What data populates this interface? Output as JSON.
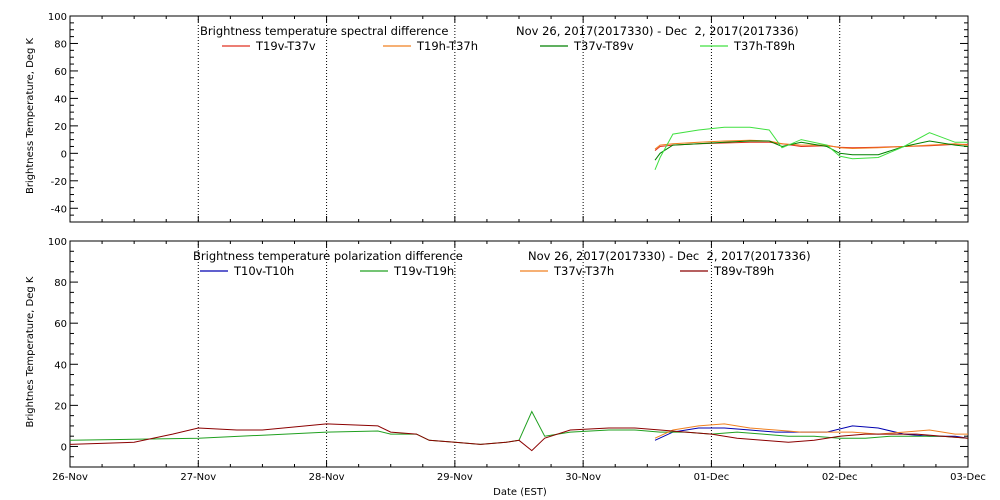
{
  "chart_data": [
    {
      "type": "line",
      "title": "Brightness temperature spectral difference",
      "date_range": "Nov 26, 2017(2017330) - Dec  2, 2017(2017336)",
      "xlabel": "",
      "ylabel": "Brightness Temperature, Deg K",
      "ylim": [
        -50,
        100
      ],
      "yticks": [
        "-40",
        "-20",
        "0",
        "20",
        "40",
        "60",
        "80",
        "100"
      ],
      "xlim": [
        "26-Nov",
        "03-Dec"
      ],
      "grid": "vertical dotted",
      "legend_placement": "top",
      "series": [
        {
          "name": "T19v-T37v",
          "color": "#e03020",
          "points": [
            [
              4.56,
              2
            ],
            [
              4.6,
              5
            ],
            [
              4.7,
              6
            ],
            [
              4.9,
              7
            ],
            [
              5.1,
              7.5
            ],
            [
              5.3,
              8
            ],
            [
              5.45,
              8
            ],
            [
              5.55,
              7
            ],
            [
              5.7,
              5
            ],
            [
              5.9,
              5.5
            ],
            [
              6.0,
              4.5
            ],
            [
              6.1,
              4
            ],
            [
              6.3,
              4.5
            ],
            [
              6.5,
              5
            ],
            [
              6.7,
              5.5
            ],
            [
              6.9,
              6.5
            ],
            [
              7.0,
              6.5
            ]
          ]
        },
        {
          "name": "T19h-T37h",
          "color": "#f08020",
          "points": [
            [
              4.56,
              3
            ],
            [
              4.6,
              6
            ],
            [
              4.7,
              7
            ],
            [
              4.9,
              8
            ],
            [
              5.1,
              9
            ],
            [
              5.3,
              9.5
            ],
            [
              5.45,
              9
            ],
            [
              5.55,
              7
            ],
            [
              5.7,
              6
            ],
            [
              5.9,
              6
            ],
            [
              6.0,
              4
            ],
            [
              6.1,
              3.5
            ],
            [
              6.3,
              4
            ],
            [
              6.5,
              5
            ],
            [
              6.7,
              6
            ],
            [
              6.9,
              7
            ],
            [
              7.0,
              6
            ]
          ]
        },
        {
          "name": "T37v-T89v",
          "color": "#008000",
          "points": [
            [
              4.56,
              -5
            ],
            [
              4.6,
              0
            ],
            [
              4.7,
              6
            ],
            [
              4.9,
              7
            ],
            [
              5.1,
              8
            ],
            [
              5.3,
              9
            ],
            [
              5.45,
              9
            ],
            [
              5.55,
              5
            ],
            [
              5.7,
              8
            ],
            [
              5.9,
              5
            ],
            [
              6.0,
              0
            ],
            [
              6.1,
              -1
            ],
            [
              6.3,
              -1
            ],
            [
              6.5,
              5
            ],
            [
              6.7,
              9
            ],
            [
              6.9,
              6
            ],
            [
              7.0,
              5
            ]
          ]
        },
        {
          "name": "T37h-T89h",
          "color": "#40e040",
          "points": [
            [
              4.56,
              -12
            ],
            [
              4.6,
              -3
            ],
            [
              4.7,
              14
            ],
            [
              4.9,
              17
            ],
            [
              5.1,
              19
            ],
            [
              5.3,
              19
            ],
            [
              5.45,
              17
            ],
            [
              5.55,
              4
            ],
            [
              5.7,
              10
            ],
            [
              5.9,
              6
            ],
            [
              6.0,
              -2
            ],
            [
              6.1,
              -4
            ],
            [
              6.3,
              -3
            ],
            [
              6.5,
              5
            ],
            [
              6.7,
              15
            ],
            [
              6.9,
              8
            ],
            [
              7.0,
              8
            ]
          ]
        }
      ]
    },
    {
      "type": "line",
      "title": "Brightness temperature polarization difference",
      "date_range": "Nov 26, 2017(2017330) - Dec  2, 2017(2017336)",
      "xlabel": "Date (EST)",
      "ylabel": "Brightnes Temperature, Deg K",
      "ylim": [
        -10,
        100
      ],
      "yticks": [
        "0",
        "20",
        "40",
        "60",
        "80",
        "100"
      ],
      "xlim": [
        "26-Nov",
        "03-Dec"
      ],
      "xticks": [
        "26-Nov",
        "27-Nov",
        "28-Nov",
        "29-Nov",
        "30-Nov",
        "01-Dec",
        "02-Dec",
        "03-Dec"
      ],
      "grid": "vertical dotted",
      "legend_placement": "top",
      "series": [
        {
          "name": "T10v-T10h",
          "color": "#0000b0",
          "points": [
            [
              4.56,
              3
            ],
            [
              4.7,
              7
            ],
            [
              4.9,
              9
            ],
            [
              5.1,
              9
            ],
            [
              5.3,
              8
            ],
            [
              5.5,
              7
            ],
            [
              5.7,
              7
            ],
            [
              5.9,
              7
            ],
            [
              6.1,
              10
            ],
            [
              6.3,
              9
            ],
            [
              6.5,
              6
            ],
            [
              6.7,
              5
            ],
            [
              6.9,
              5
            ],
            [
              7.0,
              4
            ]
          ]
        },
        {
          "name": "T19v-T19h",
          "color": "#20a020",
          "points": [
            [
              0,
              3
            ],
            [
              0.5,
              3.5
            ],
            [
              1.0,
              4
            ],
            [
              1.5,
              5.5
            ],
            [
              2.0,
              7
            ],
            [
              2.4,
              7.5
            ],
            [
              2.5,
              6
            ],
            [
              2.7,
              6
            ],
            [
              2.8,
              3
            ],
            [
              3.0,
              2
            ],
            [
              3.2,
              1
            ],
            [
              3.4,
              2
            ],
            [
              3.5,
              3
            ],
            [
              3.6,
              17
            ],
            [
              3.7,
              5
            ],
            [
              3.9,
              7
            ],
            [
              4.2,
              8
            ],
            [
              4.4,
              8
            ],
            [
              4.6,
              7
            ],
            [
              4.8,
              7
            ],
            [
              5.0,
              6
            ],
            [
              5.2,
              7
            ],
            [
              5.4,
              6
            ],
            [
              5.6,
              5
            ],
            [
              5.8,
              5
            ],
            [
              6.0,
              4
            ],
            [
              6.2,
              4
            ],
            [
              6.4,
              5
            ],
            [
              6.6,
              5
            ],
            [
              6.8,
              5
            ],
            [
              7.0,
              4
            ]
          ]
        },
        {
          "name": "T37v-T37h",
          "color": "#f08020",
          "points": [
            [
              4.56,
              4
            ],
            [
              4.7,
              8
            ],
            [
              4.9,
              10
            ],
            [
              5.1,
              11
            ],
            [
              5.3,
              9
            ],
            [
              5.5,
              8
            ],
            [
              5.7,
              7
            ],
            [
              5.9,
              7
            ],
            [
              6.1,
              7
            ],
            [
              6.3,
              6
            ],
            [
              6.5,
              7
            ],
            [
              6.7,
              8
            ],
            [
              6.9,
              6
            ],
            [
              7.0,
              6
            ]
          ]
        },
        {
          "name": "T89v-T89h",
          "color": "#8b0000",
          "points": [
            [
              0,
              1
            ],
            [
              0.5,
              2
            ],
            [
              0.8,
              6
            ],
            [
              1.0,
              9
            ],
            [
              1.3,
              8
            ],
            [
              1.5,
              8
            ],
            [
              2.0,
              11
            ],
            [
              2.4,
              10
            ],
            [
              2.5,
              7
            ],
            [
              2.7,
              6
            ],
            [
              2.8,
              3
            ],
            [
              3.0,
              2
            ],
            [
              3.2,
              1
            ],
            [
              3.4,
              2
            ],
            [
              3.5,
              3
            ],
            [
              3.6,
              -2
            ],
            [
              3.7,
              4
            ],
            [
              3.9,
              8
            ],
            [
              4.2,
              9
            ],
            [
              4.4,
              9
            ],
            [
              4.6,
              8
            ],
            [
              4.8,
              7
            ],
            [
              5.0,
              6
            ],
            [
              5.2,
              4
            ],
            [
              5.4,
              3
            ],
            [
              5.6,
              2
            ],
            [
              5.8,
              3
            ],
            [
              6.0,
              5
            ],
            [
              6.2,
              6
            ],
            [
              6.4,
              6
            ],
            [
              6.6,
              6
            ],
            [
              6.8,
              5
            ],
            [
              7.0,
              4
            ]
          ]
        }
      ]
    }
  ]
}
